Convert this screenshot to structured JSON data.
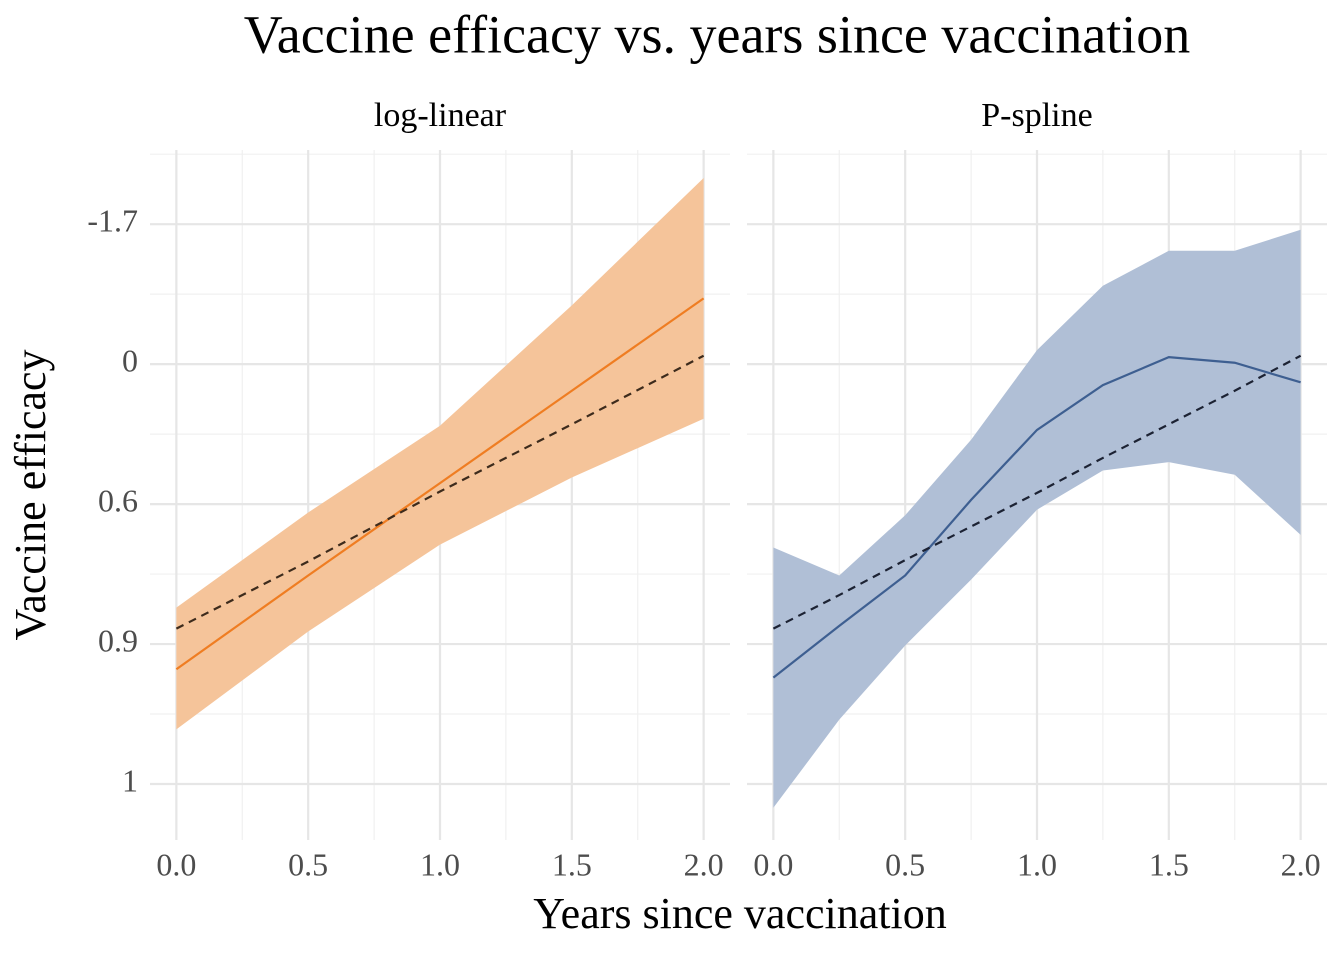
{
  "title": "Vaccine efficacy vs. years since vaccination",
  "x_label": "Years since vaccination",
  "y_label": "Vaccine efficacy",
  "chart_data": [
    {
      "type": "line",
      "facet": "log-linear",
      "x": [
        0,
        0.5,
        1,
        1.5,
        2
      ],
      "band": {
        "color": "#f5c49a",
        "lower": [
          -2.61,
          -1.91,
          -1.29,
          -0.81,
          -0.39
        ],
        "upper": [
          -1.74,
          -1.06,
          -0.44,
          0.42,
          1.33
        ]
      },
      "series": [
        {
          "color": "#ef7d22",
          "dash": false,
          "values": [
            -2.18,
            -1.51,
            -0.85,
            -0.19,
            0.47
          ]
        },
        {
          "color": "#3d2b1c",
          "dash": true,
          "values": [
            -1.89,
            -1.41,
            -0.91,
            -0.43,
            0.06
          ]
        }
      ],
      "xlim": [
        -0.1,
        2.1
      ],
      "ylim": [
        -3.4,
        1.53
      ],
      "xticks": [
        {
          "value": 0,
          "label": "0.0"
        },
        {
          "value": 0.5,
          "label": "0.5"
        },
        {
          "value": 1,
          "label": "1.0"
        },
        {
          "value": 1.5,
          "label": "1.5"
        },
        {
          "value": 2,
          "label": "2.0"
        }
      ],
      "xminor": [
        0.25,
        0.75,
        1.25,
        1.75
      ],
      "yticks": [
        {
          "value": 1,
          "label": "-1.7"
        },
        0,
        {
          "value": -1,
          "label": "0.6"
        },
        {
          "value": -2,
          "label": "0.9"
        },
        {
          "value": -3,
          "label": "1"
        }
      ],
      "yminor": [
        1.5,
        0.5,
        -0.5,
        -1.5,
        -2.5
      ],
      "grid": true
    },
    {
      "type": "line",
      "facet": "P-spline",
      "x": [
        0,
        0.25,
        0.5,
        0.75,
        1,
        1.25,
        1.5,
        1.75,
        2
      ],
      "band": {
        "color": "#b0bfd6",
        "lower": [
          -3.17,
          -2.54,
          -2.01,
          -1.54,
          -1.04,
          -0.76,
          -0.7,
          -0.79,
          -1.22
        ],
        "upper": [
          -1.31,
          -1.51,
          -1.08,
          -0.54,
          0.1,
          0.56,
          0.81,
          0.81,
          0.96
        ]
      },
      "series": [
        {
          "color": "#3e5f91",
          "dash": false,
          "values": [
            -2.24,
            -1.87,
            -1.51,
            -0.97,
            -0.47,
            -0.15,
            0.05,
            0.01,
            -0.13
          ]
        },
        {
          "color": "#1c2233",
          "dash": true,
          "values": [
            -1.89,
            -1.65,
            -1.4,
            -1.16,
            -0.92,
            -0.67,
            -0.43,
            -0.19,
            0.06
          ]
        }
      ],
      "xlim": [
        -0.1,
        2.1
      ],
      "ylim": [
        -3.4,
        1.53
      ],
      "xticks": [
        {
          "value": 0,
          "label": "0.0"
        },
        {
          "value": 0.5,
          "label": "0.5"
        },
        {
          "value": 1,
          "label": "1.0"
        },
        {
          "value": 1.5,
          "label": "1.5"
        },
        {
          "value": 2,
          "label": "2.0"
        }
      ],
      "xminor": [
        0.25,
        0.75,
        1.25,
        1.75
      ],
      "yticks": [
        {
          "value": 1,
          "label": "-1.7"
        },
        0,
        {
          "value": -1,
          "label": "0.6"
        },
        {
          "value": -2,
          "label": "0.9"
        },
        {
          "value": -3,
          "label": "1"
        }
      ],
      "yminor": [
        1.5,
        0.5,
        -0.5,
        -1.5,
        -2.5
      ],
      "grid": true
    }
  ]
}
